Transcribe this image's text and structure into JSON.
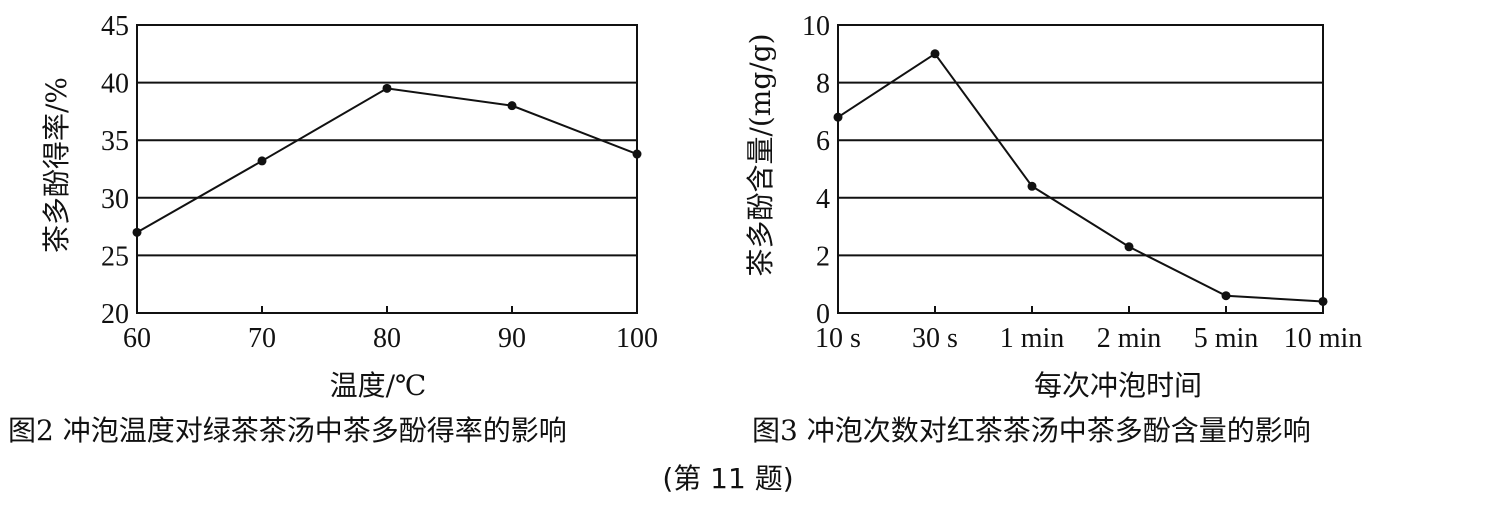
{
  "chart_data": [
    {
      "type": "line",
      "xlabel": "温度/℃",
      "ylabel": "茶多酚得率/%",
      "x": [
        60,
        70,
        80,
        90,
        100
      ],
      "categories": [
        "60",
        "70",
        "80",
        "90",
        "100"
      ],
      "series": [
        {
          "values": [
            27.0,
            33.2,
            39.5,
            38.0,
            33.8
          ]
        }
      ],
      "ylim": [
        20,
        45
      ],
      "yticks": [
        "20",
        "25",
        "30",
        "35",
        "40",
        "45"
      ],
      "grid": "horizontal",
      "caption": "图2  冲泡温度对绿茶茶汤中茶多酚得率的影响"
    },
    {
      "type": "line",
      "xlabel": "每次冲泡时间",
      "ylabel": "茶多酚含量/(mg/g)",
      "categories": [
        "10 s",
        "30 s",
        "1 min",
        "2 min",
        "5 min",
        "10 min"
      ],
      "series": [
        {
          "values": [
            6.8,
            9.0,
            4.4,
            2.3,
            0.6,
            0.4
          ]
        }
      ],
      "ylim": [
        0,
        10
      ],
      "yticks": [
        "0",
        "2",
        "4",
        "6",
        "8",
        "10"
      ],
      "grid": "horizontal",
      "caption": "图3  冲泡次数对红茶茶汤中茶多酚含量的影响"
    }
  ],
  "footer": {
    "question_label": "(第 11 题)"
  }
}
